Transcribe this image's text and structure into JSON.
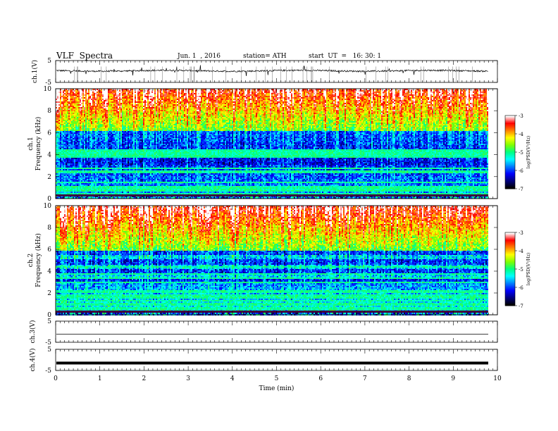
{
  "header": {
    "title": "VLF  Spectra",
    "date": "Jun. 1  , 2016",
    "station": "station= ATH",
    "start": "start  UT  =   16: 30: 1"
  },
  "chart_data": [
    {
      "type": "line",
      "panel": "ch1-waveform",
      "ylabel": "ch.1(V)",
      "yticks": [
        "5",
        "-5"
      ],
      "ylim": [
        -5,
        5
      ],
      "description_values": {
        "baseline": 0,
        "noise_amplitude": 0.6
      }
    },
    {
      "type": "heatmap",
      "panel": "ch1-spectrogram",
      "ylabel_line1": "ch.1",
      "ylabel_line2": "Frequency  (kHz)",
      "yticks": [
        "10",
        "8",
        "6",
        "4",
        "2",
        "0"
      ],
      "ylim": [
        0,
        10
      ],
      "xlim": [
        0,
        9.8
      ],
      "colorbar": {
        "label": "log(PSD(V²/Hz)",
        "ticks": [
          "-3",
          "-4",
          "-5",
          "-6",
          "-7"
        ],
        "range": [
          -7,
          -3
        ]
      },
      "colormap": [
        "#000000",
        "#000080",
        "#0000ff",
        "#0080ff",
        "#00ffff",
        "#00ff80",
        "#80ff00",
        "#ffff00",
        "#ff8000",
        "#ff0000",
        "#ffffff"
      ]
    },
    {
      "type": "heatmap",
      "panel": "ch2-spectrogram",
      "ylabel_line1": "ch.2",
      "ylabel_line2": "Frequency  (kHz)",
      "yticks": [
        "10",
        "8",
        "6",
        "4",
        "2",
        "0"
      ],
      "ylim": [
        0,
        10
      ],
      "xlim": [
        0,
        9.8
      ],
      "colorbar": {
        "label": "log(PSD(V²/Hz)",
        "ticks": [
          "-3",
          "-4",
          "-5",
          "-6",
          "-7"
        ],
        "range": [
          -7,
          -3
        ]
      }
    },
    {
      "type": "line",
      "panel": "ch3-waveform",
      "ylabel": "ch.3(V)",
      "yticks": [
        "5",
        "-5"
      ],
      "ylim": [
        -5,
        5
      ],
      "values_constant": -1.2
    },
    {
      "type": "line",
      "panel": "ch4-waveform",
      "ylabel": "ch.4(V)",
      "yticks": [
        "5",
        "-5"
      ],
      "ylim": [
        -5,
        5
      ],
      "values_constant": -1.5
    }
  ],
  "xaxis": {
    "label": "Time  (min)",
    "ticks": [
      "0",
      "1",
      "2",
      "3",
      "4",
      "5",
      "6",
      "7",
      "8",
      "9",
      "10"
    ],
    "xlim": [
      0,
      10
    ]
  }
}
